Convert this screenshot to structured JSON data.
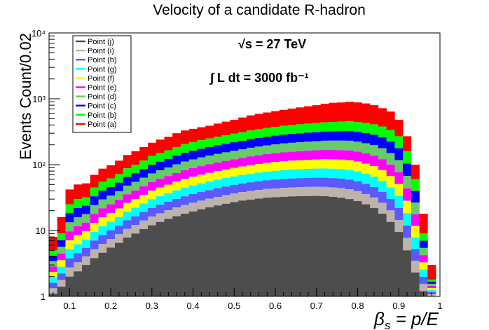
{
  "chart_data": {
    "type": "bar",
    "stacked": true,
    "title": "Velocity of a candidate R-hadron",
    "xlabel": "β_s = p/E",
    "ylabel": "Events Count/0.02",
    "xlim": [
      0.05,
      1.0
    ],
    "ylim": [
      1,
      10000
    ],
    "yscale": "log",
    "bin_width": 0.02,
    "x_ticks": [
      "0.1",
      "0.2",
      "0.3",
      "0.4",
      "0.5",
      "0.6",
      "0.7",
      "0.8",
      "0.9",
      "1"
    ],
    "x_tick_values": [
      0.1,
      0.2,
      0.3,
      0.4,
      0.5,
      0.6,
      0.7,
      0.8,
      0.9,
      1.0
    ],
    "y_ticks": [
      "1",
      "10",
      "10²",
      "10³",
      "10⁴"
    ],
    "annotations": [
      "√s = 27 TeV",
      "∫ L dt = 3000 fb⁻¹"
    ],
    "legend_placement": "top-left",
    "series": [
      {
        "name": "Point (j)",
        "color": "#4d4d4d"
      },
      {
        "name": "Point (i)",
        "color": "#bdb3aa"
      },
      {
        "name": "Point (h)",
        "color": "#5a5aff"
      },
      {
        "name": "Point (g)",
        "color": "#00ffff"
      },
      {
        "name": "Point (f)",
        "color": "#ffff00"
      },
      {
        "name": "Point (e)",
        "color": "#ff00ff"
      },
      {
        "name": "Point (d)",
        "color": "#66cc66"
      },
      {
        "name": "Point (c)",
        "color": "#0000ff"
      },
      {
        "name": "Point (b)",
        "color": "#00ff00"
      },
      {
        "name": "Point (a)",
        "color": "#ff0000"
      }
    ],
    "bin_edges_low": [
      0.05,
      0.07,
      0.09,
      0.11,
      0.13,
      0.15,
      0.17,
      0.19,
      0.21,
      0.23,
      0.25,
      0.27,
      0.29,
      0.31,
      0.33,
      0.35,
      0.37,
      0.39,
      0.41,
      0.43,
      0.45,
      0.47,
      0.49,
      0.51,
      0.53,
      0.55,
      0.57,
      0.59,
      0.61,
      0.63,
      0.65,
      0.67,
      0.69,
      0.71,
      0.73,
      0.75,
      0.77,
      0.79,
      0.81,
      0.83,
      0.85,
      0.87,
      0.89,
      0.91,
      0.93,
      0.95,
      0.97
    ],
    "totals_a": [
      8,
      16,
      42,
      50,
      52,
      70,
      87,
      98,
      115,
      140,
      160,
      185,
      215,
      240,
      265,
      300,
      330,
      350,
      370,
      390,
      420,
      450,
      480,
      520,
      560,
      590,
      620,
      650,
      680,
      710,
      740,
      770,
      800,
      840,
      870,
      880,
      900,
      880,
      850,
      800,
      720,
      640,
      480,
      270,
      100,
      18,
      3
    ],
    "totals_b": [
      5,
      9,
      25,
      30,
      32,
      45,
      55,
      62,
      72,
      88,
      100,
      115,
      135,
      150,
      165,
      185,
      205,
      220,
      235,
      250,
      265,
      280,
      295,
      310,
      330,
      345,
      360,
      375,
      390,
      400,
      410,
      420,
      430,
      440,
      445,
      450,
      455,
      445,
      430,
      410,
      380,
      335,
      270,
      160,
      60,
      9,
      1.8
    ],
    "totals_j": [
      1.1,
      1.4,
      2.0,
      2.4,
      3.0,
      3.8,
      4.6,
      5.5,
      6.5,
      7.8,
      9.0,
      10.5,
      12.0,
      13.5,
      15.0,
      16.5,
      18.0,
      19.5,
      21.0,
      22.5,
      24.0,
      25.5,
      27.0,
      28.5,
      29.5,
      30.5,
      31.5,
      32.0,
      32.5,
      33.0,
      33.2,
      33.4,
      33.5,
      33.2,
      32.5,
      31.5,
      30.0,
      28.0,
      25.0,
      22.0,
      18.0,
      13.5,
      9.5,
      5.0,
      2.3,
      1.2,
      1.0
    ]
  }
}
